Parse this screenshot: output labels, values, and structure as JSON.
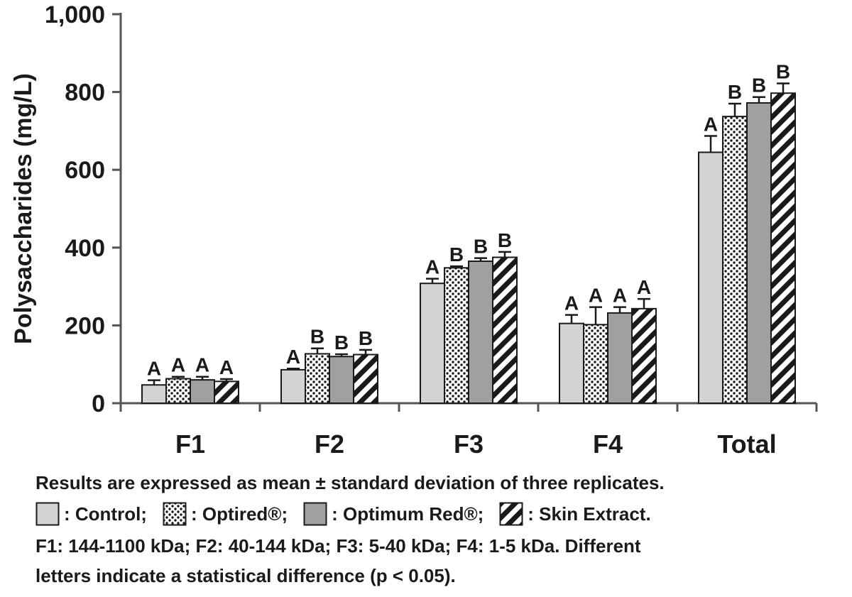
{
  "chart_data": {
    "type": "bar",
    "ylabel": "Polysaccharides (mg/L)",
    "xlabel": "",
    "ylim": [
      0,
      1000
    ],
    "yticks": [
      0,
      200,
      400,
      600,
      800,
      1000
    ],
    "ytick_labels": [
      "0",
      "200",
      "400",
      "600",
      "800",
      "1,000"
    ],
    "categories": [
      "F1",
      "F2",
      "F3",
      "F4",
      "Total"
    ],
    "series": [
      {
        "name": "Control",
        "pattern": "solid-light",
        "color": "#d3d3d3",
        "values": [
          47,
          86,
          308,
          205,
          645
        ],
        "errors": [
          12,
          3,
          12,
          22,
          42
        ],
        "letters": [
          "A",
          "A",
          "A",
          "A",
          "A"
        ]
      },
      {
        "name": "Optired®",
        "pattern": "dots",
        "color": "#ffffff",
        "values": [
          63,
          127,
          348,
          202,
          737
        ],
        "errors": [
          5,
          14,
          4,
          45,
          33
        ],
        "letters": [
          "A",
          "B",
          "B",
          "A",
          "B"
        ]
      },
      {
        "name": "Optimum Red®",
        "pattern": "solid-dark",
        "color": "#a0a0a0",
        "values": [
          60,
          120,
          365,
          232,
          772
        ],
        "errors": [
          8,
          6,
          8,
          15,
          15
        ],
        "letters": [
          "A",
          "B",
          "B",
          "A",
          "B"
        ]
      },
      {
        "name": "Skin Extract",
        "pattern": "stripes",
        "color": "#ffffff",
        "values": [
          56,
          125,
          375,
          243,
          797
        ],
        "errors": [
          6,
          12,
          14,
          25,
          25
        ],
        "letters": [
          "A",
          "B",
          "B",
          "A",
          "B"
        ]
      }
    ],
    "grid": false,
    "legend": "bottom"
  },
  "caption": {
    "line1": "Results are expressed as mean ± standard deviation of three replicates.",
    "line3": "F1: 144-1100 kDa; F2: 40-144 kDa; F3: 5-40 kDa; F4: 1-5 kDa. Different",
    "line4": "letters indicate a statistical difference (p < 0.05)."
  },
  "legend": [
    {
      "label": ": Control;",
      "pattern": "solid-light"
    },
    {
      "label": ": Optired®;",
      "pattern": "dots"
    },
    {
      "label": ": Optimum Red®;",
      "pattern": "solid-dark"
    },
    {
      "label": ": Skin Extract.",
      "pattern": "stripes"
    }
  ]
}
